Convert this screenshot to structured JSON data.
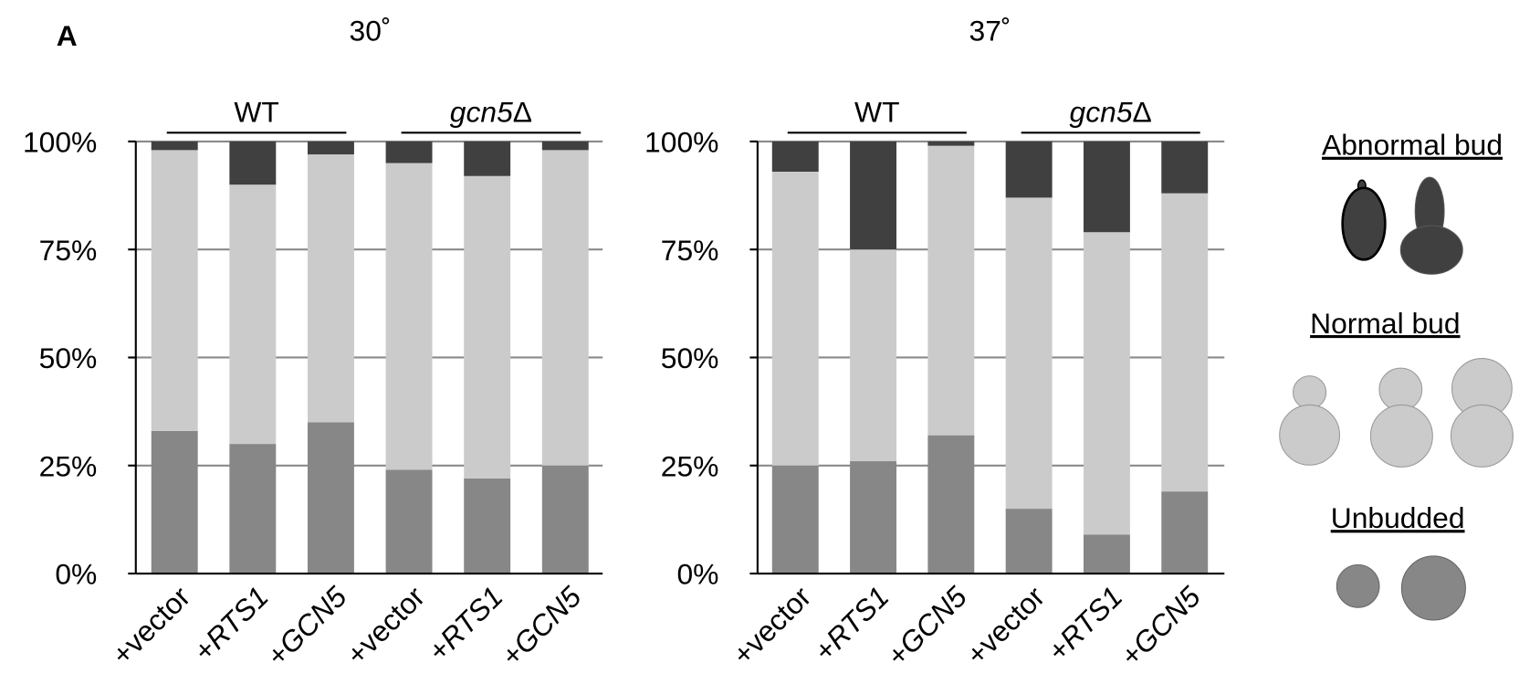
{
  "panel_label": "A",
  "chart_data": [
    {
      "type": "stacked-bar",
      "title": "30˚",
      "categories": [
        "+vector",
        "+RTS1",
        "+GCN5",
        "+vector",
        "+RTS1",
        "+GCN5"
      ],
      "groups": [
        {
          "name": "WT",
          "categories": [
            0,
            2
          ]
        },
        {
          "name": "gcn5Δ",
          "categories": [
            3,
            5
          ]
        }
      ],
      "series": [
        {
          "name": "Unbudded",
          "color": "#878787",
          "values": [
            33,
            30,
            35,
            24,
            22,
            25
          ]
        },
        {
          "name": "Normal bud",
          "color": "#cbcbcb",
          "values": [
            65,
            60,
            62,
            71,
            70,
            73
          ]
        },
        {
          "name": "Abnormal bud",
          "color": "#404040",
          "values": [
            2,
            10,
            3,
            5,
            8,
            2
          ]
        }
      ],
      "ylim": [
        0,
        100
      ],
      "yticks": [
        {
          "value": 0,
          "label": "0%"
        },
        {
          "value": 25,
          "label": "25%"
        },
        {
          "value": 50,
          "label": "50%"
        },
        {
          "value": 75,
          "label": "75%"
        },
        {
          "value": 100,
          "label": "100%"
        }
      ],
      "grid": true
    },
    {
      "type": "stacked-bar",
      "title": "37˚",
      "categories": [
        "+vector",
        "+RTS1",
        "+GCN5",
        "+vector",
        "+RTS1",
        "+GCN5"
      ],
      "groups": [
        {
          "name": "WT",
          "categories": [
            0,
            2
          ]
        },
        {
          "name": "gcn5Δ",
          "categories": [
            3,
            5
          ]
        }
      ],
      "series": [
        {
          "name": "Unbudded",
          "color": "#878787",
          "values": [
            25,
            26,
            32,
            15,
            9,
            19
          ]
        },
        {
          "name": "Normal bud",
          "color": "#cbcbcb",
          "values": [
            68,
            49,
            67,
            72,
            70,
            69
          ]
        },
        {
          "name": "Abnormal bud",
          "color": "#404040",
          "values": [
            7,
            25,
            1,
            13,
            21,
            12
          ]
        }
      ],
      "ylim": [
        0,
        100
      ],
      "yticks": [
        {
          "value": 0,
          "label": "0%"
        },
        {
          "value": 25,
          "label": "25%"
        },
        {
          "value": 50,
          "label": "50%"
        },
        {
          "value": 75,
          "label": "75%"
        },
        {
          "value": 100,
          "label": "100%"
        }
      ],
      "grid": true
    }
  ]
}
